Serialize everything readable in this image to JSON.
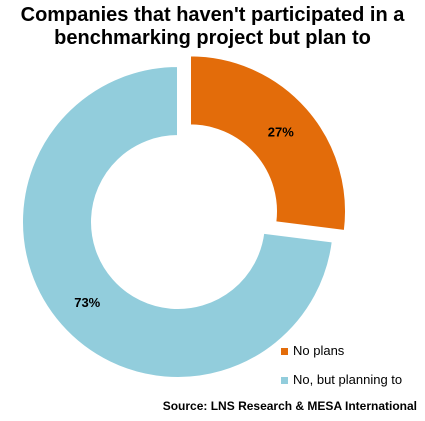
{
  "chart_data": {
    "type": "pie",
    "title_lines": [
      "Companies that haven't participated in a",
      "benchmarking project but plan to"
    ],
    "donut": true,
    "slices": [
      {
        "label": "No plans",
        "value": 27,
        "value_label": "27%",
        "color": "#e36c0a",
        "exploded": true
      },
      {
        "label": "No, but planning to",
        "value": 73,
        "value_label": "73%",
        "color": "#92cddc",
        "exploded": false
      }
    ],
    "legend_position": "bottom-right",
    "source": "Source: LNS Research & MESA International"
  }
}
